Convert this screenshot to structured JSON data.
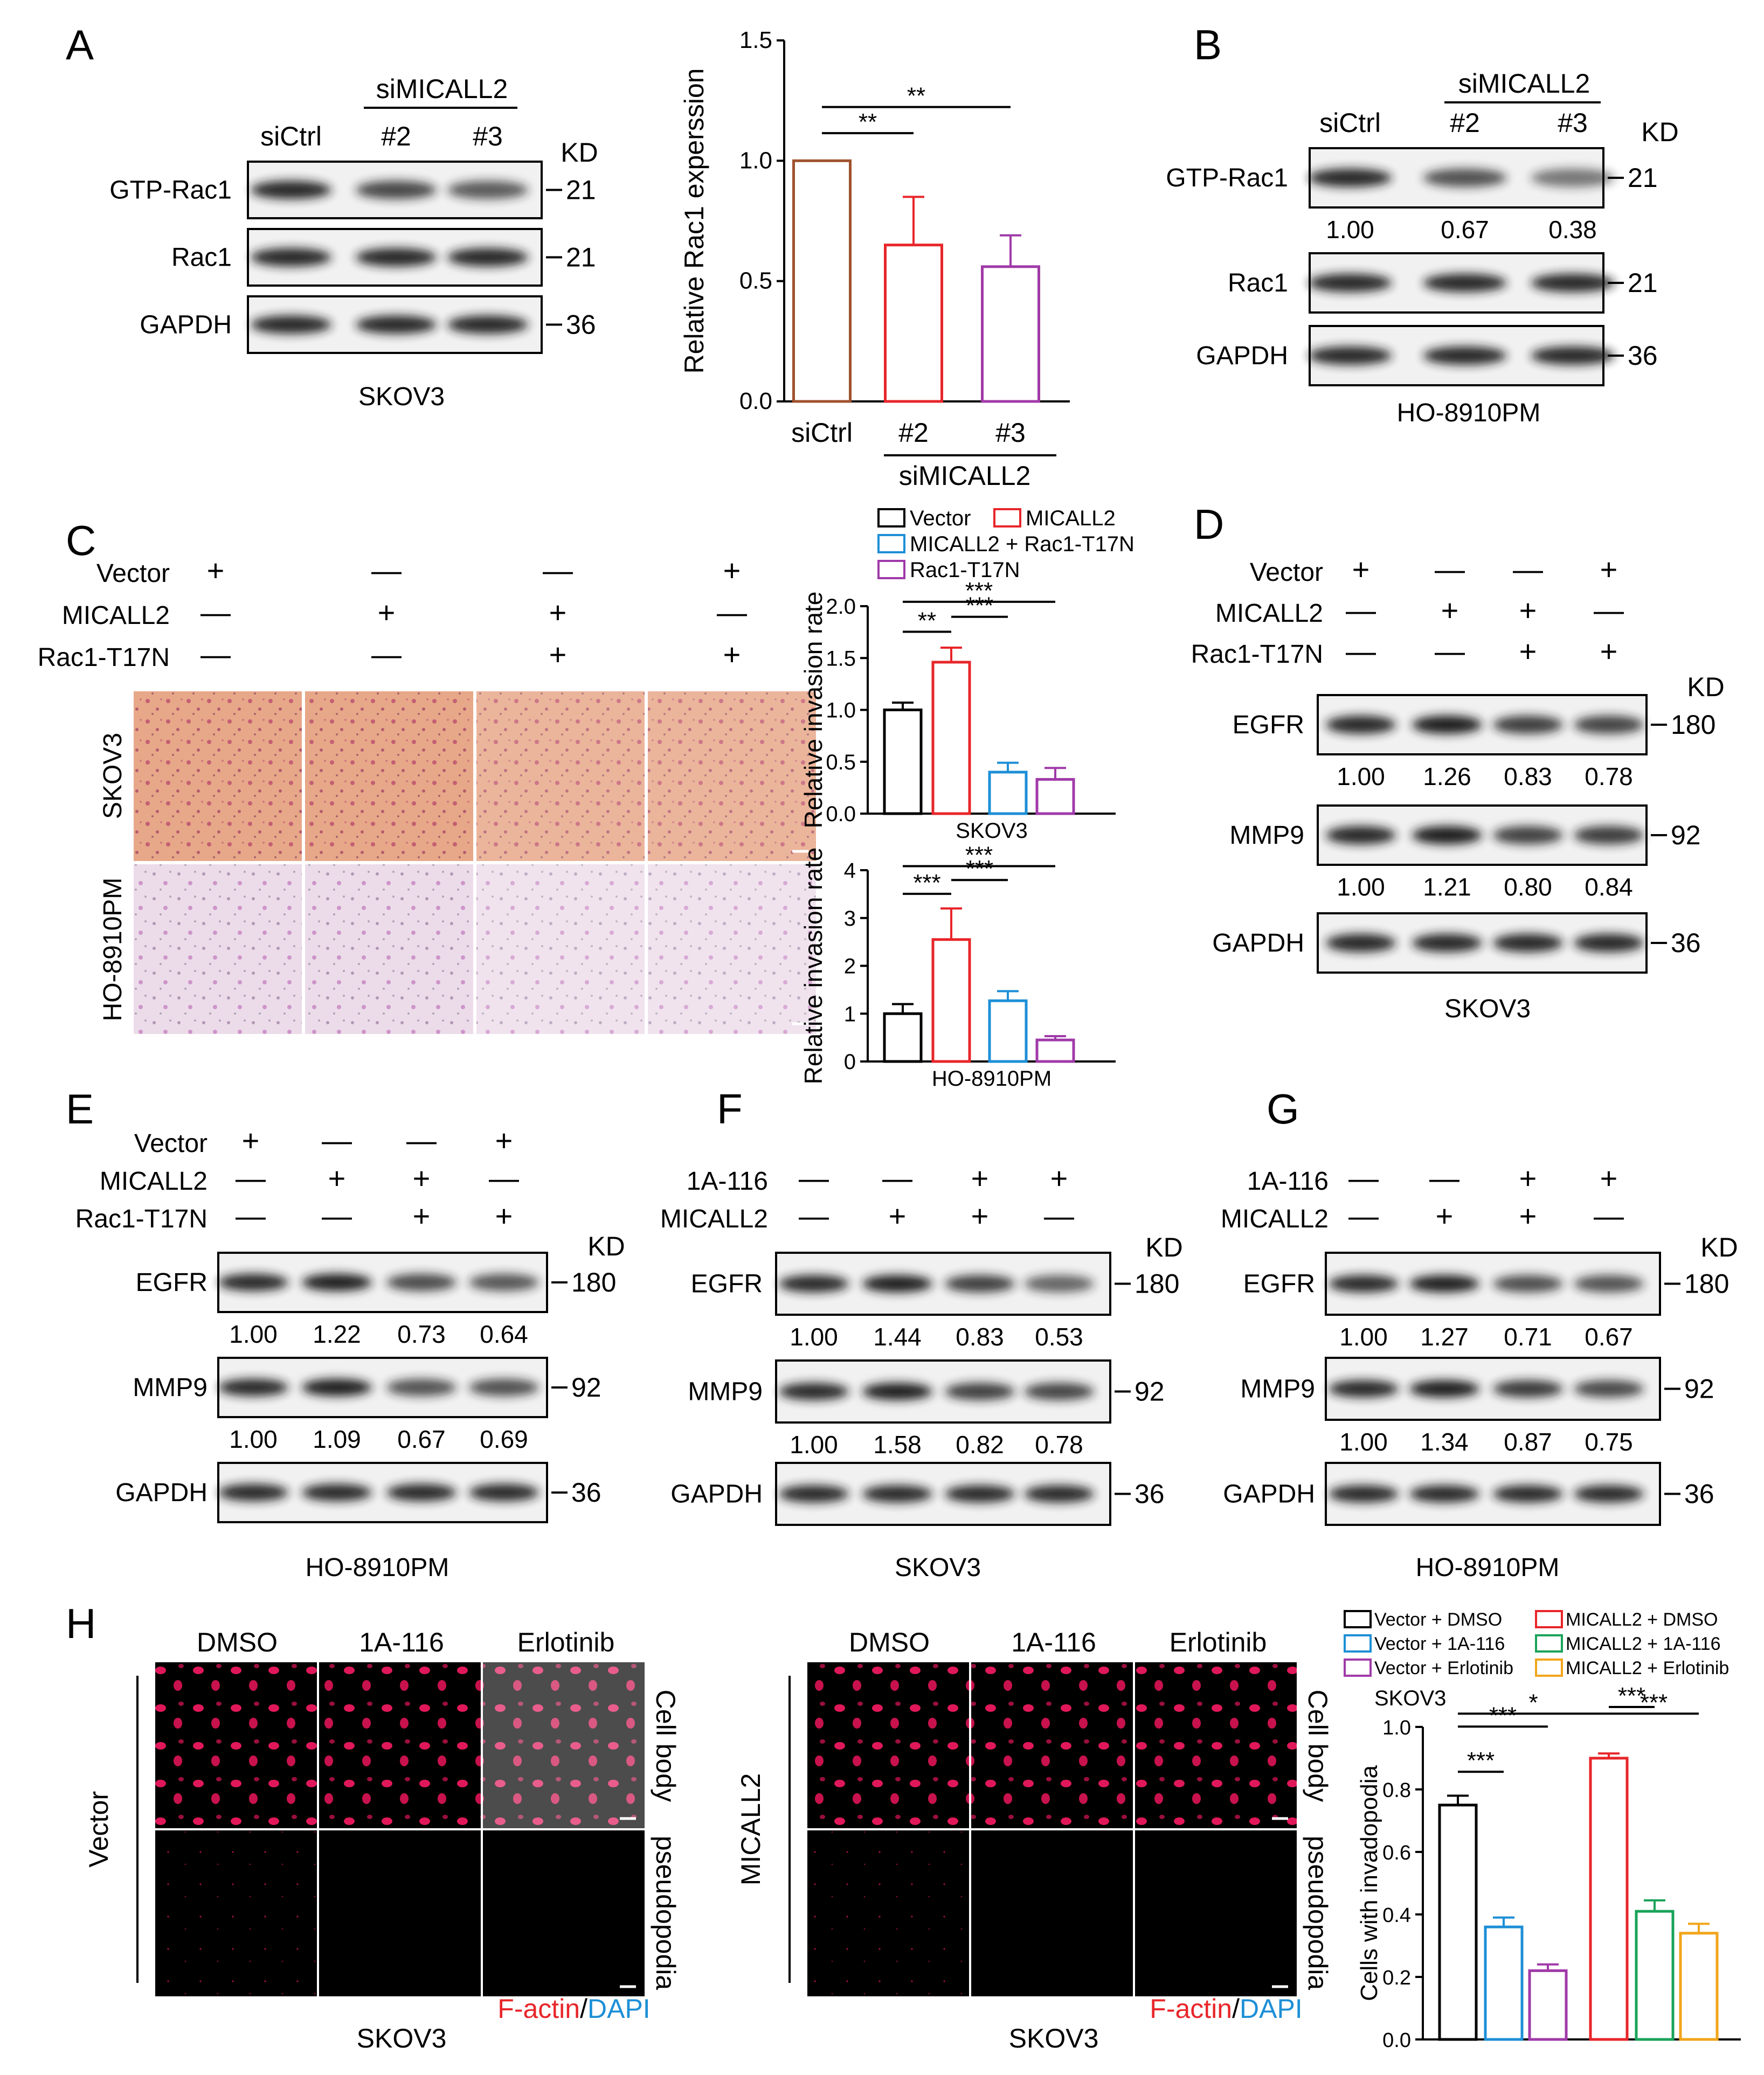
{
  "panel_letters": [
    "A",
    "B",
    "C",
    "D",
    "E",
    "F",
    "G",
    "H"
  ],
  "units": {
    "kd": "KD"
  },
  "panelA": {
    "cell_line": "SKOV3",
    "group": "siMICALL2",
    "lanes": [
      "siCtrl",
      "#2",
      "#3"
    ],
    "blots": [
      {
        "label": "GTP-Rac1",
        "kd": "21"
      },
      {
        "label": "Rac1",
        "kd": "21"
      },
      {
        "label": "GAPDH",
        "kd": "36"
      }
    ]
  },
  "panelB": {
    "cell_line": "HO-8910PM",
    "group": "siMICALL2",
    "lanes": [
      "siCtrl",
      "#2",
      "#3"
    ],
    "blots": [
      {
        "label": "GTP-Rac1",
        "kd": "21",
        "quant": [
          "1.00",
          "0.67",
          "0.38"
        ]
      },
      {
        "label": "Rac1",
        "kd": "21"
      },
      {
        "label": "GAPDH",
        "kd": "36"
      }
    ]
  },
  "panelC": {
    "rows": [
      "Vector",
      "MICALL2",
      "Rac1-T17N"
    ],
    "signs": [
      [
        "+",
        "—",
        "—",
        "+"
      ],
      [
        "—",
        "+",
        "+",
        "—"
      ],
      [
        "—",
        "—",
        "+",
        "+"
      ]
    ],
    "image_rows": [
      "SKOV3",
      "HO-8910PM"
    ],
    "legend": [
      "Vector",
      "MICALL2",
      "MICALL2 + Rac1-T17N",
      "Rac1-T17N"
    ]
  },
  "panelD": {
    "cell_line": "SKOV3",
    "rows": [
      "Vector",
      "MICALL2",
      "Rac1-T17N"
    ],
    "signs": [
      [
        "+",
        "—",
        "—",
        "+"
      ],
      [
        "—",
        "+",
        "+",
        "—"
      ],
      [
        "—",
        "—",
        "+",
        "+"
      ]
    ],
    "blots": [
      {
        "label": "EGFR",
        "kd": "180",
        "quant": [
          "1.00",
          "1.26",
          "0.83",
          "0.78"
        ]
      },
      {
        "label": "MMP9",
        "kd": "92",
        "quant": [
          "1.00",
          "1.21",
          "0.80",
          "0.84"
        ]
      },
      {
        "label": "GAPDH",
        "kd": "36"
      }
    ]
  },
  "panelE": {
    "cell_line": "HO-8910PM",
    "rows": [
      "Vector",
      "MICALL2",
      "Rac1-T17N"
    ],
    "signs": [
      [
        "+",
        "—",
        "—",
        "+"
      ],
      [
        "—",
        "+",
        "+",
        "—"
      ],
      [
        "—",
        "—",
        "+",
        "+"
      ]
    ],
    "blots": [
      {
        "label": "EGFR",
        "kd": "180",
        "quant": [
          "1.00",
          "1.22",
          "0.73",
          "0.64"
        ]
      },
      {
        "label": "MMP9",
        "kd": "92",
        "quant": [
          "1.00",
          "1.09",
          "0.67",
          "0.69"
        ]
      },
      {
        "label": "GAPDH",
        "kd": "36"
      }
    ]
  },
  "panelF": {
    "cell_line": "SKOV3",
    "rows": [
      "1A-116",
      "MICALL2"
    ],
    "signs": [
      [
        "—",
        "—",
        "+",
        "+"
      ],
      [
        "—",
        "+",
        "+",
        "—"
      ]
    ],
    "blots": [
      {
        "label": "EGFR",
        "kd": "180",
        "quant": [
          "1.00",
          "1.44",
          "0.83",
          "0.53"
        ]
      },
      {
        "label": "MMP9",
        "kd": "92",
        "quant": [
          "1.00",
          "1.58",
          "0.82",
          "0.78"
        ]
      },
      {
        "label": "GAPDH",
        "kd": "36"
      }
    ]
  },
  "panelG": {
    "cell_line": "HO-8910PM",
    "rows": [
      "1A-116",
      "MICALL2"
    ],
    "signs": [
      [
        "—",
        "—",
        "+",
        "+"
      ],
      [
        "—",
        "+",
        "+",
        "—"
      ]
    ],
    "blots": [
      {
        "label": "EGFR",
        "kd": "180",
        "quant": [
          "1.00",
          "1.27",
          "0.71",
          "0.67"
        ]
      },
      {
        "label": "MMP9",
        "kd": "92",
        "quant": [
          "1.00",
          "1.34",
          "0.87",
          "0.75"
        ]
      },
      {
        "label": "GAPDH",
        "kd": "36"
      }
    ]
  },
  "panelH": {
    "treatments": [
      "DMSO",
      "1A-116",
      "Erlotinib"
    ],
    "row_labels": [
      "Cell body",
      "pseudopodia"
    ],
    "groups": [
      "Vector",
      "MICALL2"
    ],
    "cell_line": "SKOV3",
    "stain_red": "F-actin",
    "stain_sep": "/",
    "stain_blue": "DAPI",
    "legend": [
      "Vector + DMSO",
      "MICALL2 + DMSO",
      "Vector + 1A-116",
      "MICALL2 + 1A-116",
      "Vector + Erlotinib",
      "MICALL2 + Erlotinib"
    ]
  },
  "colors": {
    "black": "#000000",
    "red": "#e8262a",
    "blue": "#1d8fd6",
    "purple": "#a03aa8",
    "brown": "#a0522d",
    "green": "#1aa35a",
    "orange": "#f2a51a"
  },
  "chart_data": [
    {
      "type": "bar",
      "panel": "A",
      "categories": [
        "siCtrl",
        "#2",
        "#3"
      ],
      "group_label": "siMICALL2",
      "values": [
        1.0,
        0.65,
        0.56
      ],
      "errors": [
        0,
        0.2,
        0.13
      ],
      "colors": [
        "#a0522d",
        "#e8262a",
        "#a03aa8"
      ],
      "ylabel": "Relative Rac1 experssion",
      "ylim": [
        0,
        1.5
      ],
      "yticks": [
        "0.0",
        "0.5",
        "1.0",
        "1.5"
      ],
      "significance": [
        {
          "from": 0,
          "to": 1,
          "label": "**"
        },
        {
          "from": 0,
          "to": 2,
          "label": "**"
        }
      ]
    },
    {
      "type": "bar",
      "panel": "C-top",
      "xlabel": "SKOV3",
      "categories": [
        "Vector",
        "MICALL2",
        "MICALL2 + Rac1-T17N",
        "Rac1-T17N"
      ],
      "values": [
        1.0,
        1.46,
        0.4,
        0.33
      ],
      "errors": [
        0.07,
        0.14,
        0.09,
        0.11
      ],
      "colors": [
        "#000000",
        "#e8262a",
        "#1d8fd6",
        "#a03aa8"
      ],
      "ylabel": "Relative invasion rate",
      "ylim": [
        0,
        2.0
      ],
      "yticks": [
        "0.0",
        "0.5",
        "1.0",
        "1.5",
        "2.0"
      ],
      "significance": [
        {
          "from": 0,
          "to": 1,
          "label": "**"
        },
        {
          "from": 1,
          "to": 2,
          "label": "***"
        },
        {
          "from": 0,
          "to": 3,
          "label": "***"
        }
      ]
    },
    {
      "type": "bar",
      "panel": "C-bottom",
      "xlabel": "HO-8910PM",
      "categories": [
        "Vector",
        "MICALL2",
        "MICALL2 + Rac1-T17N",
        "Rac1-T17N"
      ],
      "values": [
        1.0,
        2.55,
        1.27,
        0.45
      ],
      "errors": [
        0.2,
        0.65,
        0.2,
        0.08
      ],
      "colors": [
        "#000000",
        "#e8262a",
        "#1d8fd6",
        "#a03aa8"
      ],
      "ylabel": "Relative invasion rate",
      "ylim": [
        0,
        4
      ],
      "yticks": [
        "0",
        "1",
        "2",
        "3",
        "4"
      ],
      "significance": [
        {
          "from": 0,
          "to": 1,
          "label": "***"
        },
        {
          "from": 1,
          "to": 2,
          "label": "***"
        },
        {
          "from": 0,
          "to": 3,
          "label": "***"
        }
      ]
    },
    {
      "type": "bar",
      "panel": "H",
      "title": "SKOV3",
      "categories": [
        "Vector + DMSO",
        "Vector + 1A-116",
        "Vector + Erlotinib",
        "MICALL2 + DMSO",
        "MICALL2 + 1A-116",
        "MICALL2 + Erlotinib"
      ],
      "values": [
        0.75,
        0.36,
        0.22,
        0.9,
        0.41,
        0.34
      ],
      "errors": [
        0.03,
        0.03,
        0.02,
        0.015,
        0.035,
        0.03
      ],
      "colors": [
        "#000000",
        "#1d8fd6",
        "#a03aa8",
        "#e8262a",
        "#1aa35a",
        "#f2a51a"
      ],
      "ylabel": "Cells with invadopodia",
      "ylim": [
        0,
        1.0
      ],
      "yticks": [
        "0.0",
        "0.2",
        "0.4",
        "0.6",
        "0.8",
        "1.0"
      ],
      "significance": [
        {
          "from": 0,
          "to": 1,
          "label": "***"
        },
        {
          "from": 0,
          "to": 2,
          "label": "***"
        },
        {
          "from": 0,
          "to": 3,
          "label": "*"
        },
        {
          "from": 3,
          "to": 4,
          "label": "***"
        },
        {
          "from": 3,
          "to": 5,
          "label": "***"
        }
      ]
    }
  ]
}
